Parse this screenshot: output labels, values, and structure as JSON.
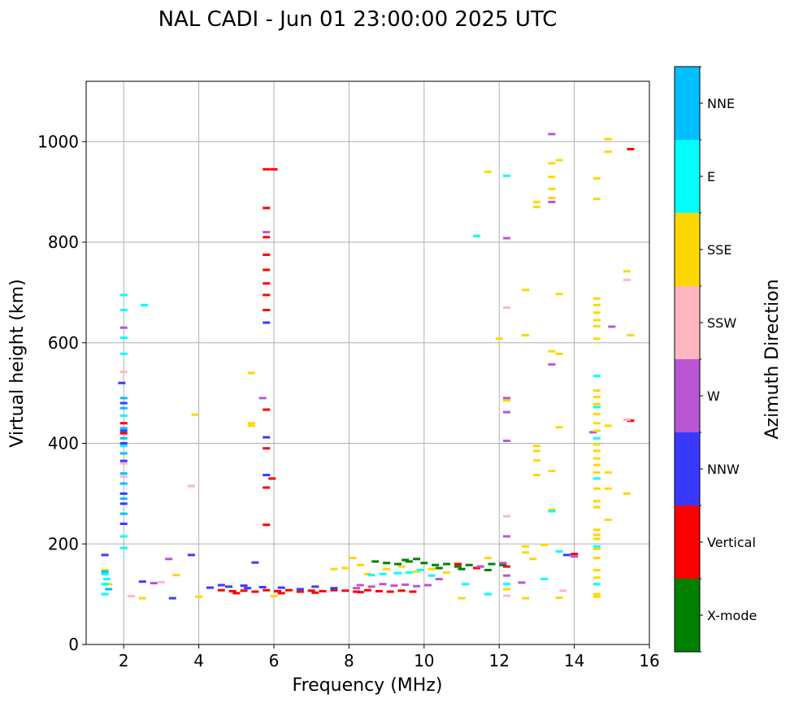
{
  "chart_data": {
    "type": "scatter",
    "title": "NAL CADI - Jun 01 23:00:00 2025 UTC",
    "xlabel": "Frequency (MHz)",
    "ylabel": "Virtual height (km)",
    "xlim": [
      1,
      16
    ],
    "ylim": [
      0,
      1120
    ],
    "xticks": [
      2,
      4,
      6,
      8,
      10,
      12,
      14,
      16
    ],
    "yticks": [
      0,
      200,
      400,
      600,
      800,
      1000
    ],
    "grid": true,
    "colorbar": {
      "label": "Azimuth Direction",
      "categories": [
        {
          "name": "X-mode",
          "color": "#008000"
        },
        {
          "name": "Vertical",
          "color": "#ff0000"
        },
        {
          "name": "NNW",
          "color": "#3a3aff"
        },
        {
          "name": "W",
          "color": "#ba55d3"
        },
        {
          "name": "SSW",
          "color": "#ffb6c1"
        },
        {
          "name": "SSE",
          "color": "#ffd700"
        },
        {
          "name": "E",
          "color": "#00ffff"
        },
        {
          "name": "NNE",
          "color": "#00bfff"
        }
      ]
    },
    "series": [
      {
        "name": "X-mode",
        "points": [
          [
            8.7,
            165
          ],
          [
            9.0,
            162
          ],
          [
            9.3,
            160
          ],
          [
            9.6,
            165
          ],
          [
            9.8,
            170
          ],
          [
            10.0,
            162
          ],
          [
            10.3,
            158
          ],
          [
            10.6,
            160
          ],
          [
            10.9,
            155
          ],
          [
            11.2,
            158
          ],
          [
            11.5,
            155
          ],
          [
            11.8,
            160
          ],
          [
            12.1,
            158
          ],
          [
            11.0,
            150
          ],
          [
            10.4,
            152
          ],
          [
            9.5,
            168
          ],
          [
            11.7,
            148
          ]
        ]
      },
      {
        "name": "Vertical",
        "points": [
          [
            4.6,
            108
          ],
          [
            4.9,
            106
          ],
          [
            5.2,
            107
          ],
          [
            5.5,
            105
          ],
          [
            5.8,
            108
          ],
          [
            6.1,
            106
          ],
          [
            6.4,
            108
          ],
          [
            6.7,
            105
          ],
          [
            7.0,
            107
          ],
          [
            7.3,
            106
          ],
          [
            7.6,
            108
          ],
          [
            7.9,
            107
          ],
          [
            8.2,
            105
          ],
          [
            8.5,
            108
          ],
          [
            8.8,
            106
          ],
          [
            9.1,
            105
          ],
          [
            9.4,
            107
          ],
          [
            9.7,
            105
          ],
          [
            5.0,
            102
          ],
          [
            6.2,
            102
          ],
          [
            7.1,
            103
          ],
          [
            8.3,
            104
          ],
          [
            5.8,
            945
          ],
          [
            5.8,
            868
          ],
          [
            5.8,
            810
          ],
          [
            5.8,
            775
          ],
          [
            5.8,
            745
          ],
          [
            5.8,
            718
          ],
          [
            5.8,
            695
          ],
          [
            5.8,
            665
          ],
          [
            5.8,
            467
          ],
          [
            5.8,
            390
          ],
          [
            5.8,
            312
          ],
          [
            5.8,
            238
          ],
          [
            5.95,
            330
          ],
          [
            6.0,
            945
          ],
          [
            14.0,
            180
          ],
          [
            15.5,
            985
          ],
          [
            15.5,
            445
          ],
          [
            10.9,
            160
          ],
          [
            11.4,
            152
          ],
          [
            12.2,
            155
          ],
          [
            2.0,
            440
          ],
          [
            2.0,
            420
          ]
        ]
      },
      {
        "name": "NNW",
        "points": [
          [
            4.3,
            113
          ],
          [
            4.8,
            115
          ],
          [
            5.3,
            112
          ],
          [
            5.7,
            114
          ],
          [
            6.2,
            113
          ],
          [
            6.7,
            110
          ],
          [
            7.1,
            115
          ],
          [
            7.6,
            112
          ],
          [
            5.8,
            640
          ],
          [
            5.8,
            337
          ],
          [
            5.8,
            412
          ],
          [
            3.8,
            178
          ],
          [
            5.5,
            163
          ],
          [
            2.0,
            480
          ],
          [
            2.0,
            425
          ],
          [
            2.0,
            400
          ],
          [
            2.0,
            365
          ],
          [
            2.0,
            300
          ],
          [
            2.0,
            280
          ],
          [
            2.0,
            240
          ],
          [
            1.95,
            520
          ],
          [
            1.5,
            178
          ],
          [
            3.3,
            92
          ],
          [
            2.5,
            125
          ],
          [
            4.6,
            118
          ],
          [
            5.2,
            117
          ],
          [
            13.8,
            178
          ]
        ]
      },
      {
        "name": "W",
        "points": [
          [
            8.3,
            118
          ],
          [
            8.6,
            115
          ],
          [
            8.9,
            120
          ],
          [
            9.2,
            117
          ],
          [
            9.5,
            119
          ],
          [
            9.8,
            116
          ],
          [
            10.1,
            118
          ],
          [
            8.2,
            112
          ],
          [
            12.2,
            215
          ],
          [
            12.2,
            490
          ],
          [
            12.2,
            462
          ],
          [
            12.2,
            405
          ],
          [
            12.2,
            808
          ],
          [
            12.6,
            123
          ],
          [
            12.2,
            137
          ],
          [
            13.4,
            880
          ],
          [
            13.4,
            1015
          ],
          [
            13.4,
            557
          ],
          [
            14.5,
            422
          ],
          [
            15.0,
            632
          ],
          [
            14.0,
            175
          ],
          [
            5.8,
            820
          ],
          [
            5.7,
            490
          ],
          [
            3.2,
            170
          ],
          [
            2.8,
            122
          ],
          [
            10.4,
            130
          ],
          [
            11.5,
            155
          ],
          [
            12.1,
            162
          ],
          [
            2.0,
            630
          ]
        ]
      },
      {
        "name": "SSW",
        "points": [
          [
            12.2,
            670
          ],
          [
            12.2,
            255
          ],
          [
            15.4,
            725
          ],
          [
            15.4,
            447
          ],
          [
            13.7,
            107
          ],
          [
            12.2,
            97
          ],
          [
            3.8,
            315
          ],
          [
            2.0,
            542
          ],
          [
            2.0,
            360
          ],
          [
            2.0,
            334
          ],
          [
            3.0,
            124
          ],
          [
            2.2,
            96
          ]
        ]
      },
      {
        "name": "SSE",
        "points": [
          [
            13.0,
            880
          ],
          [
            13.0,
            870
          ],
          [
            13.4,
            957
          ],
          [
            13.4,
            930
          ],
          [
            13.4,
            906
          ],
          [
            13.4,
            888
          ],
          [
            13.6,
            963
          ],
          [
            14.6,
            927
          ],
          [
            14.6,
            886
          ],
          [
            14.9,
            1005
          ],
          [
            14.9,
            980
          ],
          [
            15.4,
            742
          ],
          [
            15.5,
            615
          ],
          [
            14.6,
            688
          ],
          [
            14.6,
            675
          ],
          [
            14.6,
            660
          ],
          [
            14.6,
            645
          ],
          [
            14.6,
            633
          ],
          [
            14.6,
            608
          ],
          [
            14.6,
            505
          ],
          [
            14.6,
            492
          ],
          [
            14.6,
            478
          ],
          [
            14.6,
            458
          ],
          [
            14.6,
            440
          ],
          [
            14.6,
            425
          ],
          [
            14.6,
            398
          ],
          [
            14.6,
            385
          ],
          [
            14.6,
            370
          ],
          [
            14.6,
            357
          ],
          [
            14.6,
            342
          ],
          [
            14.6,
            310
          ],
          [
            14.6,
            285
          ],
          [
            14.6,
            273
          ],
          [
            14.6,
            228
          ],
          [
            14.6,
            218
          ],
          [
            14.6,
            210
          ],
          [
            14.6,
            190
          ],
          [
            14.6,
            172
          ],
          [
            14.6,
            148
          ],
          [
            14.6,
            133
          ],
          [
            14.6,
            100
          ],
          [
            14.6,
            95
          ],
          [
            14.9,
            435
          ],
          [
            14.9,
            342
          ],
          [
            14.9,
            310
          ],
          [
            14.9,
            248
          ],
          [
            15.4,
            300
          ],
          [
            13.4,
            583
          ],
          [
            13.4,
            268
          ],
          [
            13.4,
            345
          ],
          [
            13.6,
            432
          ],
          [
            13.6,
            697
          ],
          [
            13.6,
            578
          ],
          [
            13.0,
            395
          ],
          [
            13.0,
            385
          ],
          [
            13.0,
            366
          ],
          [
            13.0,
            337
          ],
          [
            12.7,
            705
          ],
          [
            12.7,
            615
          ],
          [
            12.2,
            485
          ],
          [
            12.0,
            608
          ],
          [
            11.7,
            940
          ],
          [
            13.2,
            198
          ],
          [
            12.7,
            195
          ],
          [
            12.7,
            183
          ],
          [
            12.9,
            170
          ],
          [
            13.6,
            93
          ],
          [
            12.7,
            92
          ],
          [
            12.2,
            110
          ],
          [
            11.0,
            92
          ],
          [
            9.0,
            150
          ],
          [
            9.4,
            155
          ],
          [
            9.8,
            145
          ],
          [
            10.2,
            150
          ],
          [
            10.6,
            143
          ],
          [
            8.1,
            172
          ],
          [
            7.9,
            152
          ],
          [
            7.6,
            150
          ],
          [
            8.5,
            140
          ],
          [
            8.3,
            158
          ],
          [
            11.7,
            172
          ],
          [
            5.4,
            540
          ],
          [
            5.4,
            440
          ],
          [
            5.4,
            435
          ],
          [
            3.9,
            457
          ],
          [
            3.4,
            138
          ],
          [
            2.5,
            92
          ],
          [
            4.0,
            95
          ],
          [
            6.0,
            96
          ],
          [
            1.5,
            148
          ],
          [
            1.6,
            120
          ]
        ]
      },
      {
        "name": "E",
        "points": [
          [
            2.0,
            695
          ],
          [
            2.0,
            665
          ],
          [
            2.0,
            610
          ],
          [
            2.0,
            578
          ],
          [
            2.0,
            455
          ],
          [
            2.0,
            395
          ],
          [
            2.0,
            215
          ],
          [
            2.0,
            192
          ],
          [
            1.5,
            140
          ],
          [
            1.5,
            120
          ],
          [
            1.5,
            100
          ],
          [
            1.55,
            130
          ],
          [
            2.55,
            675
          ],
          [
            11.4,
            812
          ],
          [
            12.2,
            932
          ],
          [
            13.4,
            265
          ],
          [
            13.6,
            185
          ],
          [
            13.2,
            130
          ],
          [
            12.2,
            120
          ],
          [
            11.1,
            120
          ],
          [
            11.7,
            100
          ],
          [
            14.6,
            534
          ],
          [
            14.6,
            472
          ],
          [
            14.6,
            410
          ],
          [
            14.6,
            330
          ],
          [
            14.6,
            195
          ],
          [
            14.6,
            120
          ],
          [
            9.6,
            143
          ],
          [
            9.9,
            148
          ],
          [
            10.2,
            137
          ],
          [
            8.9,
            140
          ],
          [
            8.6,
            138
          ],
          [
            9.3,
            142
          ]
        ]
      },
      {
        "name": "NNE",
        "points": [
          [
            2.0,
            490
          ],
          [
            2.0,
            470
          ],
          [
            2.0,
            430
          ],
          [
            2.0,
            410
          ],
          [
            2.0,
            380
          ],
          [
            2.0,
            340
          ],
          [
            2.0,
            320
          ],
          [
            2.0,
            290
          ],
          [
            2.0,
            260
          ],
          [
            1.5,
            145
          ],
          [
            1.6,
            110
          ]
        ]
      }
    ]
  }
}
